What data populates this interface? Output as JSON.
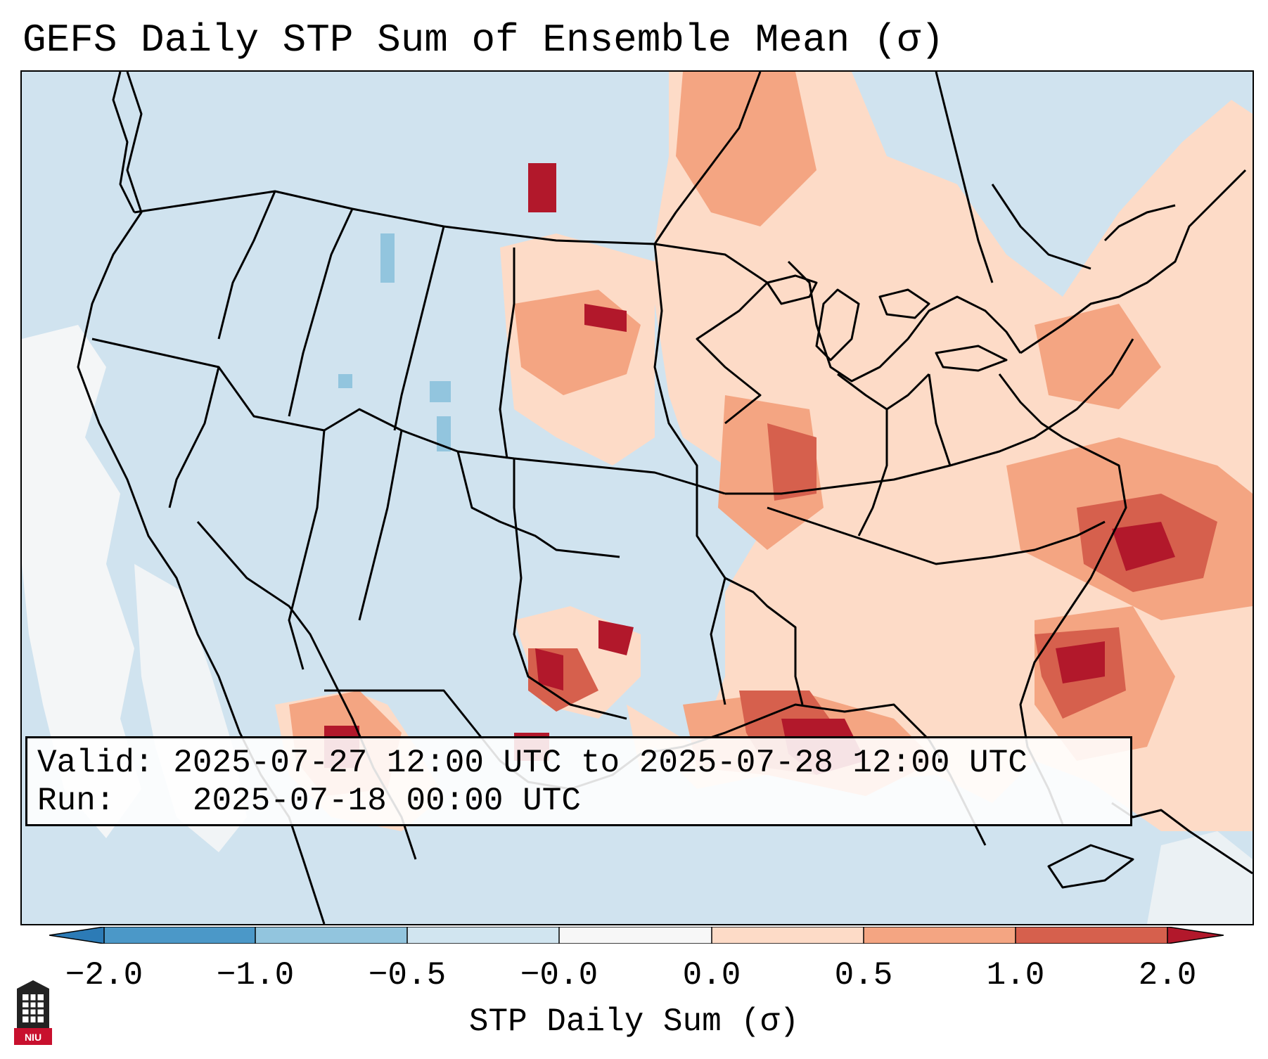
{
  "title": "GEFS Daily STP Sum of Ensemble Mean (σ)",
  "info": {
    "valid_label": "Valid:",
    "valid_value": "2025-07-27 12:00 UTC to 2025-07-28 12:00 UTC",
    "run_label": "Run:",
    "run_value": "2025-07-18 00:00 UTC"
  },
  "colorbar": {
    "label": "STP Daily Sum (σ)",
    "ticks": [
      "−2.0",
      "−1.0",
      "−0.5",
      "−0.0",
      "0.0",
      "0.5",
      "1.0",
      "2.0"
    ],
    "bins": [
      {
        "range": "< -2.0",
        "color": "#2c7bb6"
      },
      {
        "range": "-2.0 to -1.0",
        "color": "#4b98c8"
      },
      {
        "range": "-1.0 to -0.5",
        "color": "#92c5de"
      },
      {
        "range": "-0.5 to -0.0",
        "color": "#d1e5f0"
      },
      {
        "range": "-0.0 to 0.0",
        "color": "#f7f7f7"
      },
      {
        "range": "0.0 to 0.5",
        "color": "#fddbc7"
      },
      {
        "range": "0.5 to 1.0",
        "color": "#f4a582"
      },
      {
        "range": "1.0 to 2.0",
        "color": "#d6604d"
      },
      {
        "range": "> 2.0",
        "color": "#b2182b"
      }
    ]
  },
  "logo": {
    "text": "NIU",
    "color": "#c8102e"
  },
  "colors": {
    "ocean": "#d0e3ef",
    "neutral": "#f7f7f7",
    "border": "#000000"
  }
}
